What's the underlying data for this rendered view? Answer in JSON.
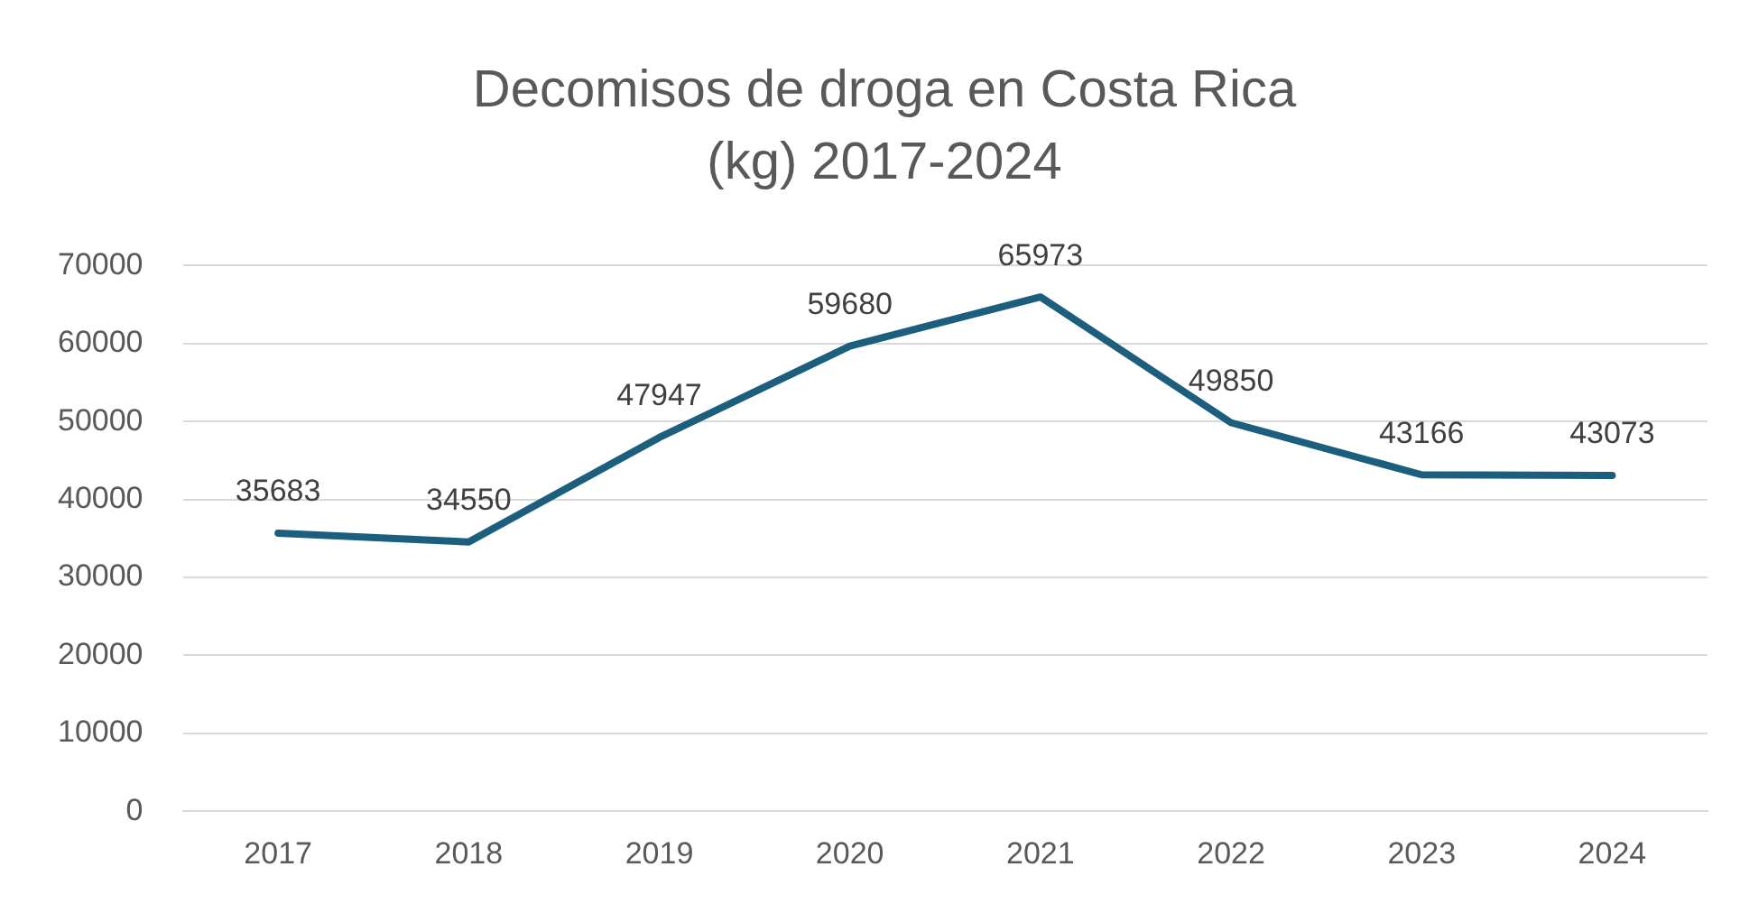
{
  "chart_data": {
    "type": "line",
    "title": "Decomisos de droga en Costa Rica (kg) 2017-2024",
    "categories": [
      "2017",
      "2018",
      "2019",
      "2020",
      "2021",
      "2022",
      "2023",
      "2024"
    ],
    "values": [
      35683,
      34550,
      47947,
      59680,
      65973,
      49850,
      43166,
      43073
    ],
    "color": "#1b5e7e",
    "ylim": [
      0,
      70000
    ],
    "yticks": [
      0,
      10000,
      20000,
      30000,
      40000,
      50000,
      60000,
      70000
    ],
    "grid": "y",
    "data_labels": true,
    "marker": "none",
    "line_style": "solid",
    "legend": false
  }
}
